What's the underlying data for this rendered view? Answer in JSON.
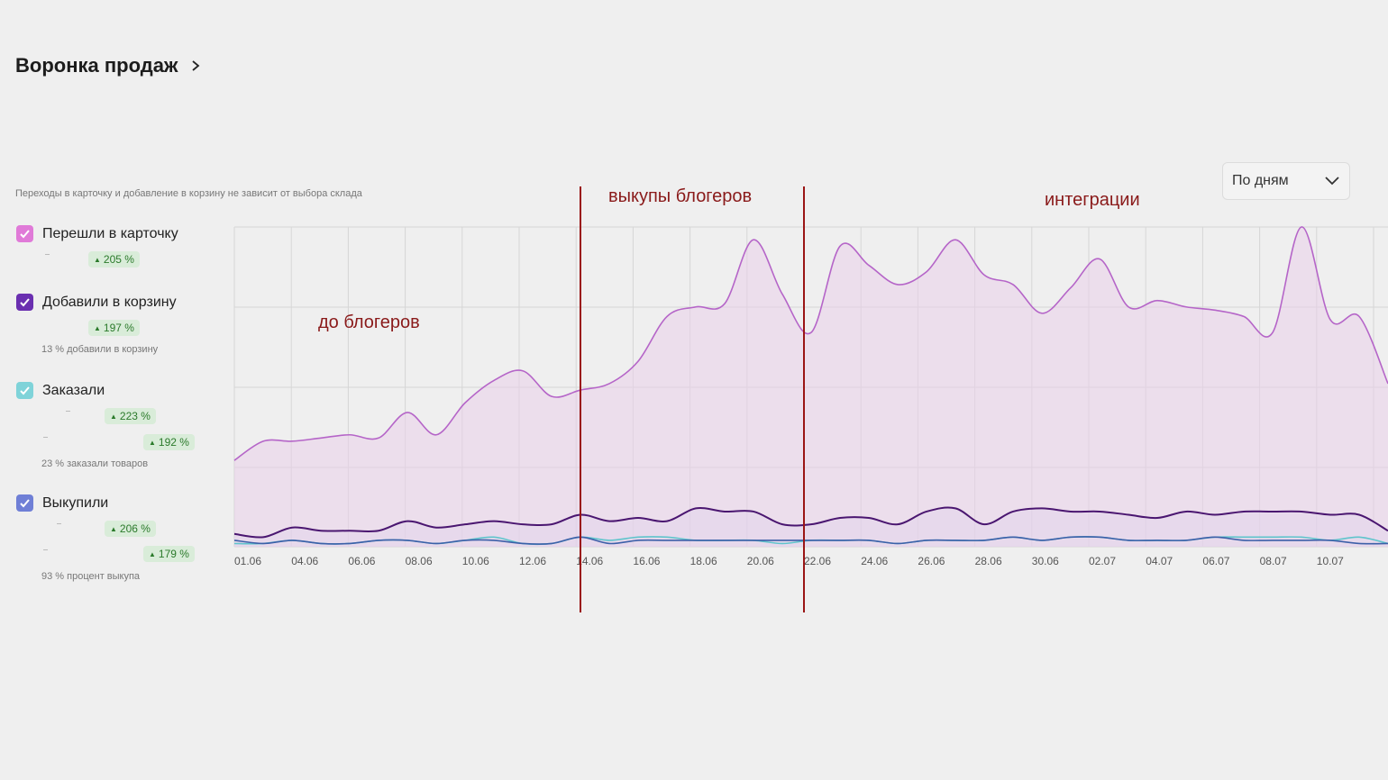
{
  "header": {
    "title": "Воронка продаж"
  },
  "note": "Переходы в карточку и добавление в корзину не зависит от выбора склада",
  "period_select": {
    "value": "По дням"
  },
  "legend": [
    {
      "label": "Перешли в карточку",
      "color": "#e07ad8",
      "badges": [
        "205 %"
      ],
      "sub": ""
    },
    {
      "label": "Добавили в корзину",
      "color": "#6a2fb0",
      "badges": [
        "197 %"
      ],
      "sub": "13 % добавили в корзину"
    },
    {
      "label": "Заказали",
      "color": "#7fd3d9",
      "badges": [
        "223 %",
        "192 %"
      ],
      "sub": "23 % заказали товаров"
    },
    {
      "label": "Выкупили",
      "color": "#6f7fd6",
      "badges": [
        "206 %",
        "179 %"
      ],
      "sub": "93 % процент выкупа"
    }
  ],
  "annotations": {
    "before": "до блогеров",
    "bloggers": "выкупы блогеров",
    "integrations": "интеграции"
  },
  "chart_data": {
    "type": "line",
    "x_tick_labels": [
      "01.06",
      "04.06",
      "06.06",
      "08.06",
      "10.06",
      "12.06",
      "14.06",
      "16.06",
      "18.06",
      "20.06",
      "22.06",
      "24.06",
      "26.06",
      "28.06",
      "30.06",
      "02.07",
      "04.07",
      "06.07",
      "08.07",
      "10.07"
    ],
    "series": [
      {
        "name": "Перешли в карточку",
        "color": "#b565c8",
        "values": [
          0.27,
          0.33,
          0.33,
          0.34,
          0.35,
          0.34,
          0.42,
          0.35,
          0.45,
          0.52,
          0.55,
          0.47,
          0.49,
          0.51,
          0.58,
          0.72,
          0.75,
          0.76,
          0.96,
          0.79,
          0.67,
          0.94,
          0.88,
          0.82,
          0.86,
          0.96,
          0.85,
          0.82,
          0.73,
          0.81,
          0.9,
          0.75,
          0.77,
          0.75,
          0.74,
          0.72,
          0.67,
          1.0,
          0.71,
          0.72,
          0.51
        ]
      },
      {
        "name": "Добавили в корзину",
        "color": "#4a1670",
        "values": [
          0.04,
          0.03,
          0.06,
          0.05,
          0.05,
          0.05,
          0.08,
          0.06,
          0.07,
          0.08,
          0.07,
          0.07,
          0.1,
          0.08,
          0.09,
          0.08,
          0.12,
          0.11,
          0.11,
          0.07,
          0.07,
          0.09,
          0.09,
          0.07,
          0.11,
          0.12,
          0.07,
          0.11,
          0.12,
          0.11,
          0.11,
          0.1,
          0.09,
          0.11,
          0.1,
          0.11,
          0.11,
          0.11,
          0.1,
          0.1,
          0.05
        ]
      },
      {
        "name": "Заказали",
        "color": "#5fc4cc",
        "values": [
          0.01,
          0.01,
          0.02,
          0.01,
          0.01,
          0.02,
          0.02,
          0.01,
          0.02,
          0.03,
          0.01,
          0.01,
          0.03,
          0.02,
          0.03,
          0.03,
          0.02,
          0.02,
          0.02,
          0.01,
          0.02,
          0.02,
          0.02,
          0.01,
          0.02,
          0.02,
          0.02,
          0.03,
          0.02,
          0.03,
          0.03,
          0.02,
          0.02,
          0.02,
          0.03,
          0.03,
          0.03,
          0.03,
          0.02,
          0.03,
          0.01
        ]
      },
      {
        "name": "Выкупили",
        "color": "#3c5fa8",
        "values": [
          0.02,
          0.01,
          0.02,
          0.01,
          0.01,
          0.02,
          0.02,
          0.01,
          0.02,
          0.02,
          0.01,
          0.01,
          0.03,
          0.01,
          0.02,
          0.02,
          0.02,
          0.02,
          0.02,
          0.02,
          0.02,
          0.02,
          0.02,
          0.01,
          0.02,
          0.02,
          0.02,
          0.03,
          0.02,
          0.03,
          0.03,
          0.02,
          0.02,
          0.02,
          0.03,
          0.02,
          0.02,
          0.02,
          0.02,
          0.01,
          0.01
        ]
      }
    ],
    "grid": true,
    "vertical_markers": [
      "13.06",
      "21.06"
    ]
  }
}
